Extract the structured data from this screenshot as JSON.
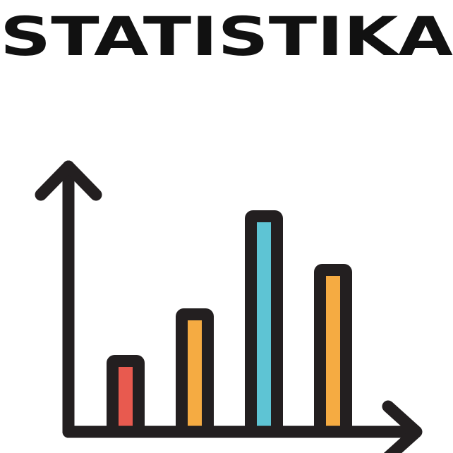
{
  "title": "STATISTIKA",
  "illustration": {
    "icon": "bar-chart-icon",
    "outline_color": "#231f20",
    "bars": [
      {
        "level": 0.33,
        "fill": "#e85a4f"
      },
      {
        "level": 0.53,
        "fill": "#f5ab42"
      },
      {
        "level": 0.95,
        "fill": "#5ec4d4"
      },
      {
        "level": 0.72,
        "fill": "#f5ab42"
      }
    ]
  }
}
